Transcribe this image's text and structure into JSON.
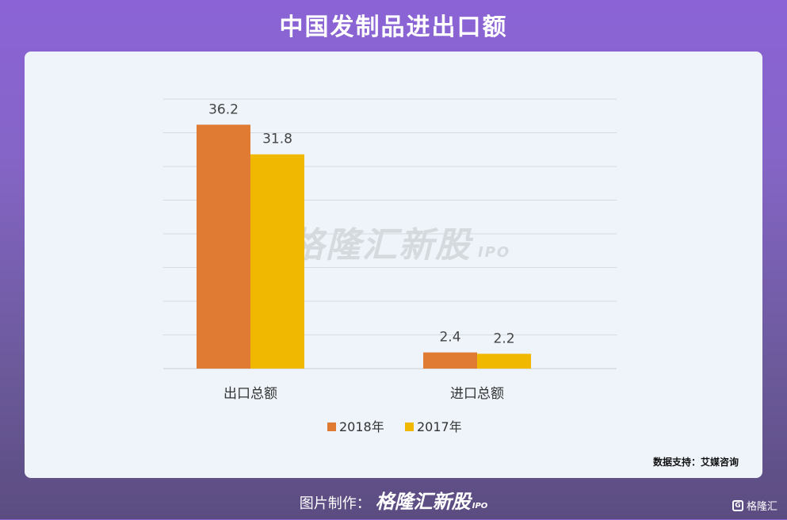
{
  "header": {
    "title": "中国发制品进出口额"
  },
  "source_note": "数据支持：艾媒咨询",
  "watermark": {
    "text": "格隆汇新股",
    "suffix": "IPO"
  },
  "footer": {
    "prefix": "图片制作：",
    "brand": "格隆汇新股",
    "suffix": "IPO"
  },
  "corner_logo": {
    "icon": "G",
    "text": "格隆汇"
  },
  "colors": {
    "series_2018": "#e07b33",
    "series_2017": "#f0b800"
  },
  "chart_data": {
    "type": "bar",
    "categories": [
      "出口总额",
      "进口总额"
    ],
    "series": [
      {
        "name": "2018年",
        "values": [
          36.2,
          2.4
        ],
        "color": "#e07b33"
      },
      {
        "name": "2017年",
        "values": [
          31.8,
          2.2
        ],
        "color": "#f0b800"
      }
    ],
    "data_labels": [
      [
        "36.2",
        "2.4"
      ],
      [
        "31.8",
        "2.2"
      ]
    ],
    "ylim": [
      0,
      40
    ],
    "grid": true,
    "legend": "bottom-center"
  }
}
